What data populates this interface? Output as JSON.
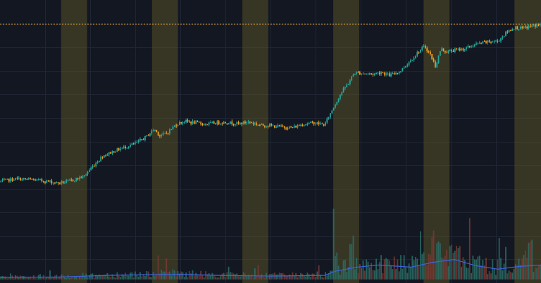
{
  "colors": {
    "background": "#131722",
    "grid": "#1f2533",
    "bull": "#26a69a",
    "bear": "#f0a020",
    "session_band": "#5c5528",
    "price_line": "#e0a030",
    "volume_ma": "#3d63e0",
    "vol_bull": "#2a6f66",
    "vol_bear": "#7a3a34"
  },
  "chart_data": {
    "type": "candlestick",
    "title": "",
    "xlabel": "",
    "ylabel": "",
    "x_range": [
      0,
      100
    ],
    "y_range": [
      0,
      100
    ],
    "grid": true,
    "legend": "none",
    "price_line_level": 93,
    "session_bands": [
      [
        11.3,
        16.1
      ],
      [
        28.1,
        32.9
      ],
      [
        44.8,
        49.6
      ],
      [
        61.6,
        66.4
      ],
      [
        78.3,
        83.1
      ],
      [
        95.1,
        100
      ]
    ],
    "price_path": [
      [
        0,
        22.5
      ],
      [
        3,
        23.7
      ],
      [
        6,
        23.3
      ],
      [
        9,
        22.5
      ],
      [
        10.5,
        21.8
      ],
      [
        12,
        22.2
      ],
      [
        14,
        23.5
      ],
      [
        15.5,
        24.8
      ],
      [
        17,
        29.0
      ],
      [
        19,
        34.0
      ],
      [
        22,
        37.0
      ],
      [
        25,
        39.5
      ],
      [
        27,
        42.5
      ],
      [
        28.5,
        46.0
      ],
      [
        29.5,
        43.0
      ],
      [
        31,
        44.5
      ],
      [
        32.5,
        48.0
      ],
      [
        34,
        49.5
      ],
      [
        36,
        48.8
      ],
      [
        38,
        48.2
      ],
      [
        40,
        48.8
      ],
      [
        42,
        49.0
      ],
      [
        44,
        48.3
      ],
      [
        46,
        49.2
      ],
      [
        48,
        47.8
      ],
      [
        50,
        47.5
      ],
      [
        52,
        47.0
      ],
      [
        54,
        46.6
      ],
      [
        56,
        48.2
      ],
      [
        58,
        48.8
      ],
      [
        60,
        47.9
      ],
      [
        61.5,
        55.0
      ],
      [
        63,
        62.0
      ],
      [
        64.5,
        67.0
      ],
      [
        65.5,
        71.2
      ],
      [
        67,
        71.0
      ],
      [
        69,
        70.6
      ],
      [
        70.5,
        71.5
      ],
      [
        72,
        70.0
      ],
      [
        74,
        72.0
      ],
      [
        76,
        77.0
      ],
      [
        77.5,
        81.0
      ],
      [
        78.5,
        83.0
      ],
      [
        79.5,
        79.5
      ],
      [
        80.5,
        74.0
      ],
      [
        81.5,
        82.0
      ],
      [
        82.5,
        80.5
      ],
      [
        84,
        81.3
      ],
      [
        86,
        82.0
      ],
      [
        88,
        84.0
      ],
      [
        90,
        85.0
      ],
      [
        92,
        85.3
      ],
      [
        93.5,
        89.0
      ],
      [
        95,
        91.5
      ],
      [
        96.5,
        91.0
      ],
      [
        98,
        92.0
      ],
      [
        100,
        92.8
      ]
    ],
    "volume_profile": [
      [
        0,
        1.5
      ],
      [
        11,
        1.8
      ],
      [
        16,
        2.5
      ],
      [
        20,
        3.0
      ],
      [
        28,
        3.5
      ],
      [
        33,
        3.8
      ],
      [
        40,
        3.0
      ],
      [
        50,
        2.5
      ],
      [
        60,
        3.0
      ],
      [
        62,
        6.0
      ],
      [
        66,
        9.0
      ],
      [
        70,
        10.5
      ],
      [
        76,
        9.0
      ],
      [
        80,
        12.5
      ],
      [
        84,
        14.5
      ],
      [
        88,
        10.0
      ],
      [
        92,
        7.5
      ],
      [
        96,
        9.5
      ],
      [
        100,
        10.5
      ]
    ],
    "volume_spikes": [
      [
        62,
        22
      ],
      [
        65,
        35
      ],
      [
        80,
        42
      ],
      [
        81,
        36
      ],
      [
        97,
        25
      ],
      [
        98,
        30
      ]
    ]
  }
}
